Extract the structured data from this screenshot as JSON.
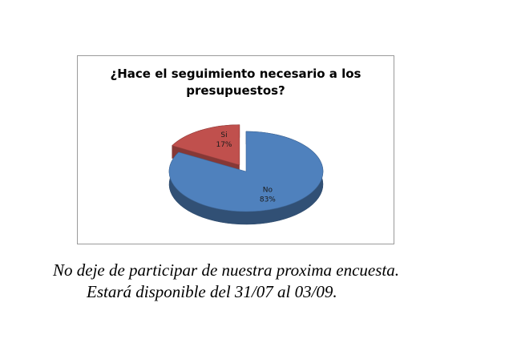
{
  "chart_data": {
    "type": "pie",
    "title": "¿Hace el seguimiento necesario a los presupuestos?",
    "slices": [
      {
        "label": "Si",
        "value": 17,
        "value_label": "17%",
        "color": "#c0504d",
        "exploded": true
      },
      {
        "label": "No",
        "value": 83,
        "value_label": "83%",
        "color": "#4f81bd",
        "exploded": false
      }
    ],
    "legend": "none",
    "style": "3d"
  },
  "caption": {
    "line1": "No deje de participar de nuestra proxima encuesta.",
    "line2": "Estará disponible del 31/07 al 03/09."
  }
}
